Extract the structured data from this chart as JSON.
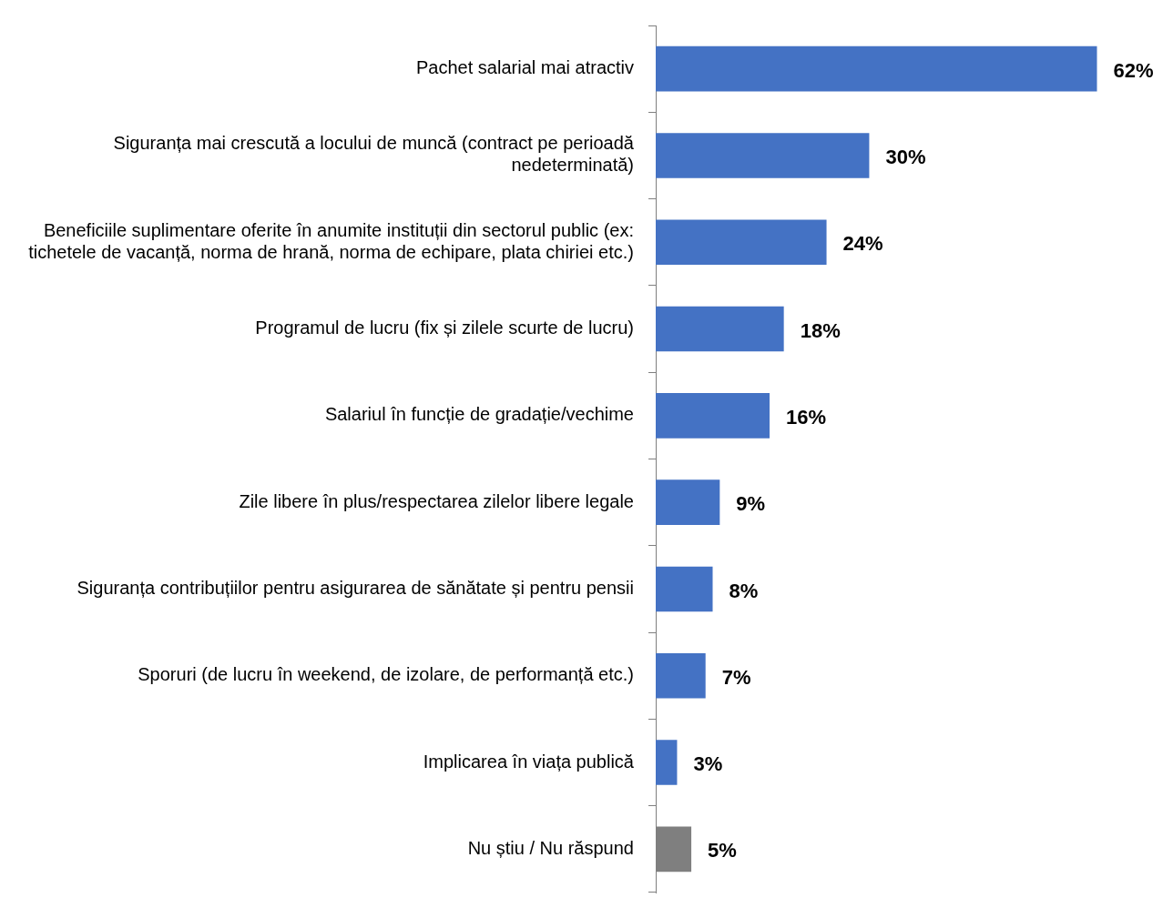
{
  "chart_data": {
    "type": "bar",
    "orientation": "horizontal",
    "categories": [
      "Pachet salarial mai atractiv",
      "Siguranța mai crescută a locului de muncă (contract pe perioadă nedeterminată)",
      "Beneficiile suplimentare oferite în anumite instituții din sectorul public (ex: tichetele de vacanță, norma de hrană, norma de echipare, plata chiriei etc.)",
      "Programul de lucru (fix și zilele scurte de lucru)",
      "Salariul în funcție de gradație/vechime",
      "Zile libere în plus/respectarea zilelor libere legale",
      "Siguranța contribuțiilor pentru asigurarea de sănătate și pentru pensii",
      "Sporuri (de lucru în weekend, de izolare, de performanță etc.)",
      "Implicarea în viața publică",
      "Nu știu / Nu răspund"
    ],
    "values": [
      62,
      30,
      24,
      18,
      16,
      9,
      8,
      7,
      3,
      5
    ],
    "value_labels": [
      "62%",
      "30%",
      "24%",
      "18%",
      "16%",
      "9%",
      "8%",
      "7%",
      "3%",
      "5%"
    ],
    "colors": [
      "#4472c4",
      "#4472c4",
      "#4472c4",
      "#4472c4",
      "#4472c4",
      "#4472c4",
      "#4472c4",
      "#4472c4",
      "#4472c4",
      "#7f7f7f"
    ],
    "grid": false,
    "legend": false
  }
}
